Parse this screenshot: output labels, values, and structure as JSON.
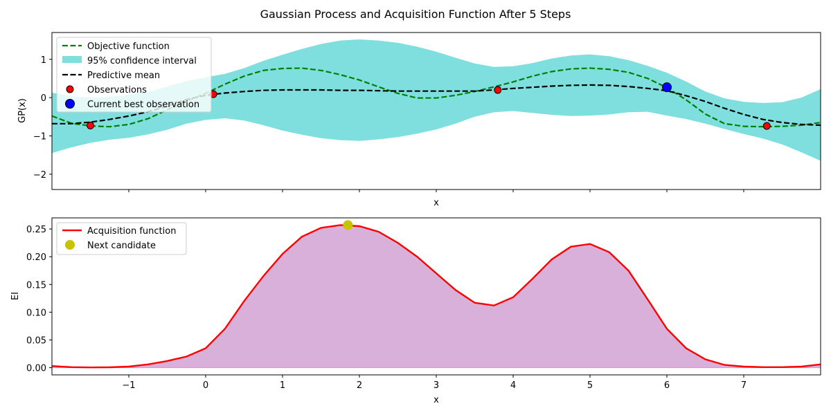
{
  "figure": {
    "title": "Gaussian Process and Acquisition Function After 5 Steps"
  },
  "colors": {
    "objective": "#008000",
    "confidence": "#7fdfdf",
    "mean": "#000000",
    "observation": "#ff0000",
    "best": "#0000ff",
    "acquisition": "#ff0000",
    "acquisition_fill": "#d8b0da",
    "candidate": "#c8c200"
  },
  "chart_data": [
    {
      "type": "line",
      "xlabel": "x",
      "ylabel": "GP(x)",
      "xlim": [
        -2,
        8
      ],
      "ylim": [
        -2.4,
        1.7
      ],
      "xticks": [
        -1,
        0,
        1,
        2,
        3,
        4,
        5,
        6,
        7
      ],
      "xtick_labels_visible": false,
      "yticks": [
        -2,
        -1,
        0,
        1
      ],
      "ytick_labels": [
        "−2",
        "−1",
        "0",
        "1"
      ],
      "legend": {
        "placement": "upper-left",
        "entries": [
          "Objective function",
          "95% confidence interval",
          "Predictive mean",
          "Observations",
          "Current best observation"
        ]
      },
      "x": [
        -2,
        -1.75,
        -1.5,
        -1.25,
        -1,
        -0.75,
        -0.5,
        -0.25,
        0,
        0.25,
        0.5,
        0.75,
        1,
        1.25,
        1.5,
        1.75,
        2,
        2.25,
        2.5,
        2.75,
        3,
        3.25,
        3.5,
        3.75,
        4,
        4.25,
        4.5,
        4.75,
        5,
        5.25,
        5.5,
        5.75,
        6,
        6.25,
        6.5,
        6.75,
        7,
        7.25,
        7.5,
        7.75,
        8
      ],
      "series": [
        {
          "name": "Objective function",
          "style": "dashed",
          "values": [
            -0.48,
            -0.67,
            -0.74,
            -0.76,
            -0.7,
            -0.55,
            -0.32,
            -0.09,
            0.11,
            0.35,
            0.56,
            0.71,
            0.76,
            0.77,
            0.71,
            0.6,
            0.46,
            0.28,
            0.11,
            -0.01,
            -0.01,
            0.06,
            0.16,
            0.28,
            0.41,
            0.56,
            0.68,
            0.75,
            0.77,
            0.74,
            0.66,
            0.5,
            0.26,
            -0.06,
            -0.43,
            -0.68,
            -0.75,
            -0.76,
            -0.75,
            -0.72,
            -0.65
          ]
        },
        {
          "name": "Predictive mean",
          "style": "dashed",
          "values": [
            -0.68,
            -0.68,
            -0.64,
            -0.57,
            -0.48,
            -0.37,
            -0.22,
            -0.05,
            0.06,
            0.12,
            0.16,
            0.19,
            0.2,
            0.2,
            0.2,
            0.19,
            0.19,
            0.18,
            0.17,
            0.17,
            0.17,
            0.17,
            0.17,
            0.2,
            0.24,
            0.27,
            0.3,
            0.32,
            0.33,
            0.32,
            0.29,
            0.24,
            0.18,
            0.05,
            -0.1,
            -0.28,
            -0.44,
            -0.57,
            -0.65,
            -0.7,
            -0.72
          ]
        }
      ],
      "confidence_interval": {
        "name": "95% confidence interval",
        "lower": [
          -1.45,
          -1.3,
          -1.18,
          -1.1,
          -1.05,
          -0.96,
          -0.84,
          -0.68,
          -0.58,
          -0.54,
          -0.6,
          -0.72,
          -0.86,
          -0.97,
          -1.06,
          -1.11,
          -1.13,
          -1.09,
          -1.03,
          -0.94,
          -0.83,
          -0.68,
          -0.5,
          -0.38,
          -0.35,
          -0.4,
          -0.45,
          -0.48,
          -0.47,
          -0.44,
          -0.38,
          -0.37,
          -0.47,
          -0.56,
          -0.68,
          -0.82,
          -0.95,
          -1.07,
          -1.22,
          -1.43,
          -1.65
        ],
        "upper": [
          0.13,
          0.04,
          0.0,
          0.02,
          0.08,
          0.15,
          0.29,
          0.43,
          0.53,
          0.62,
          0.77,
          0.96,
          1.12,
          1.27,
          1.4,
          1.49,
          1.52,
          1.49,
          1.43,
          1.33,
          1.2,
          1.04,
          0.89,
          0.8,
          0.82,
          0.9,
          1.02,
          1.1,
          1.13,
          1.08,
          0.98,
          0.83,
          0.65,
          0.42,
          0.16,
          -0.02,
          -0.11,
          -0.14,
          -0.12,
          0.0,
          0.22
        ]
      },
      "observations": {
        "name": "Observations",
        "x": [
          -1.5,
          0.1,
          3.8,
          7.3
        ],
        "y": [
          -0.73,
          0.09,
          0.2,
          -0.74
        ]
      },
      "best_observation": {
        "name": "Current best observation",
        "x": 6.0,
        "y": 0.27
      }
    },
    {
      "type": "area",
      "xlabel": "x",
      "ylabel": "EI",
      "xlim": [
        -2,
        8
      ],
      "ylim": [
        -0.013,
        0.27
      ],
      "xticks": [
        -1,
        0,
        1,
        2,
        3,
        4,
        5,
        6,
        7
      ],
      "xtick_labels": [
        "−1",
        "0",
        "1",
        "2",
        "3",
        "4",
        "5",
        "6",
        "7"
      ],
      "yticks": [
        0.0,
        0.05,
        0.1,
        0.15,
        0.2,
        0.25
      ],
      "ytick_labels": [
        "0.00",
        "0.05",
        "0.10",
        "0.15",
        "0.20",
        "0.25"
      ],
      "legend": {
        "placement": "upper-left",
        "entries": [
          "Acquisition function",
          "Next candidate"
        ]
      },
      "x": [
        -2,
        -1.75,
        -1.5,
        -1.25,
        -1,
        -0.75,
        -0.5,
        -0.25,
        0,
        0.25,
        0.5,
        0.75,
        1,
        1.25,
        1.5,
        1.75,
        2,
        2.25,
        2.5,
        2.75,
        3,
        3.25,
        3.5,
        3.75,
        4,
        4.25,
        4.5,
        4.75,
        5,
        5.25,
        5.5,
        5.75,
        6,
        6.25,
        6.5,
        6.75,
        7,
        7.25,
        7.5,
        7.75,
        8
      ],
      "series": [
        {
          "name": "Acquisition function",
          "values": [
            0.003,
            0.001,
            0.0005,
            0.0007,
            0.002,
            0.006,
            0.012,
            0.02,
            0.035,
            0.07,
            0.12,
            0.165,
            0.205,
            0.236,
            0.252,
            0.257,
            0.255,
            0.245,
            0.225,
            0.2,
            0.17,
            0.14,
            0.117,
            0.112,
            0.127,
            0.16,
            0.195,
            0.218,
            0.223,
            0.208,
            0.175,
            0.123,
            0.07,
            0.035,
            0.015,
            0.005,
            0.002,
            0.001,
            0.001,
            0.002,
            0.006
          ]
        }
      ],
      "next_candidate": {
        "name": "Next candidate",
        "x": 1.85,
        "y": 0.257
      }
    }
  ]
}
